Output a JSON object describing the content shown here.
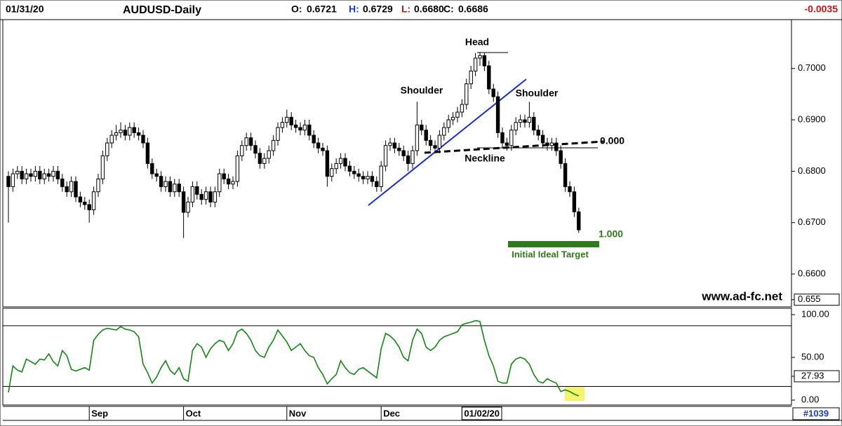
{
  "chart_data": {
    "type": "candlestick",
    "date": "01/31/20",
    "title": "AUDUSD-Daily",
    "quote": {
      "o_label": "O:",
      "o": "0.6721",
      "h_label": "H:",
      "h": "0.6729",
      "l_label": "L:",
      "l": "0.6680",
      "c_label": "C:",
      "c": "0.6686"
    },
    "change": "-0.0035",
    "open": [
      0.679,
      0.677,
      0.6795,
      0.68,
      0.6785,
      0.6795,
      0.679,
      0.68,
      0.6785,
      0.6795,
      0.679,
      0.68,
      0.6785,
      0.677,
      0.676,
      0.678,
      0.675,
      0.674,
      0.6735,
      0.6725,
      0.676,
      0.6785,
      0.683,
      0.6855,
      0.687,
      0.6875,
      0.688,
      0.687,
      0.6885,
      0.6875,
      0.687,
      0.6855,
      0.6815,
      0.6795,
      0.679,
      0.677,
      0.678,
      0.676,
      0.6775,
      0.676,
      0.672,
      0.674,
      0.677,
      0.6755,
      0.6745,
      0.676,
      0.674,
      0.676,
      0.6795,
      0.6785,
      0.6775,
      0.678,
      0.683,
      0.685,
      0.6865,
      0.685,
      0.6835,
      0.6815,
      0.6825,
      0.684,
      0.686,
      0.6885,
      0.6895,
      0.6905,
      0.689,
      0.6885,
      0.688,
      0.689,
      0.687,
      0.6855,
      0.6845,
      0.684,
      0.679,
      0.6805,
      0.6815,
      0.6825,
      0.681,
      0.68,
      0.6795,
      0.679,
      0.6785,
      0.679,
      0.678,
      0.677,
      0.681,
      0.685,
      0.6855,
      0.6845,
      0.684,
      0.683,
      0.6815,
      0.684,
      0.689,
      0.688,
      0.686,
      0.685,
      0.6845,
      0.687,
      0.6885,
      0.69,
      0.6905,
      0.6915,
      0.693,
      0.697,
      0.6995,
      0.702,
      0.7025,
      0.7005,
      0.696,
      0.6945,
      0.6875,
      0.6855,
      0.685,
      0.688,
      0.6895,
      0.69,
      0.6895,
      0.6905,
      0.688,
      0.687,
      0.6855,
      0.685,
      0.6855,
      0.684,
      0.6815,
      0.677,
      0.676,
      0.6721
    ],
    "high": [
      0.68,
      0.6805,
      0.681,
      0.681,
      0.6805,
      0.6805,
      0.681,
      0.681,
      0.6805,
      0.6805,
      0.681,
      0.681,
      0.6795,
      0.678,
      0.679,
      0.679,
      0.676,
      0.675,
      0.6745,
      0.677,
      0.6795,
      0.684,
      0.6865,
      0.688,
      0.689,
      0.6895,
      0.689,
      0.6895,
      0.6895,
      0.6885,
      0.688,
      0.6865,
      0.6825,
      0.6805,
      0.68,
      0.679,
      0.679,
      0.6785,
      0.6785,
      0.677,
      0.675,
      0.678,
      0.678,
      0.6765,
      0.677,
      0.677,
      0.677,
      0.6805,
      0.6805,
      0.6795,
      0.679,
      0.684,
      0.686,
      0.6875,
      0.6875,
      0.686,
      0.6845,
      0.6835,
      0.685,
      0.687,
      0.6895,
      0.6905,
      0.692,
      0.6915,
      0.69,
      0.6895,
      0.69,
      0.69,
      0.688,
      0.6865,
      0.6855,
      0.685,
      0.6815,
      0.6825,
      0.6835,
      0.6835,
      0.682,
      0.681,
      0.6805,
      0.68,
      0.68,
      0.68,
      0.679,
      0.682,
      0.686,
      0.6865,
      0.6865,
      0.6855,
      0.685,
      0.684,
      0.685,
      0.6935,
      0.69,
      0.689,
      0.687,
      0.686,
      0.688,
      0.6895,
      0.691,
      0.6915,
      0.6925,
      0.694,
      0.698,
      0.7005,
      0.703,
      0.7032,
      0.703,
      0.7015,
      0.697,
      0.6955,
      0.6885,
      0.6865,
      0.689,
      0.6905,
      0.691,
      0.691,
      0.6935,
      0.6915,
      0.689,
      0.688,
      0.6865,
      0.6865,
      0.6865,
      0.685,
      0.6825,
      0.678,
      0.677,
      0.6729
    ],
    "low": [
      0.67,
      0.676,
      0.6785,
      0.6775,
      0.6775,
      0.678,
      0.678,
      0.6775,
      0.6775,
      0.678,
      0.678,
      0.6775,
      0.676,
      0.675,
      0.675,
      0.674,
      0.673,
      0.6725,
      0.67,
      0.6715,
      0.675,
      0.6775,
      0.682,
      0.6845,
      0.686,
      0.6865,
      0.686,
      0.686,
      0.6865,
      0.686,
      0.6845,
      0.6805,
      0.6785,
      0.678,
      0.676,
      0.676,
      0.675,
      0.675,
      0.675,
      0.667,
      0.671,
      0.673,
      0.6745,
      0.6735,
      0.6735,
      0.673,
      0.673,
      0.675,
      0.6775,
      0.6765,
      0.6765,
      0.677,
      0.682,
      0.684,
      0.684,
      0.6825,
      0.6805,
      0.6805,
      0.6815,
      0.683,
      0.685,
      0.6875,
      0.6885,
      0.688,
      0.6875,
      0.687,
      0.687,
      0.686,
      0.6845,
      0.6835,
      0.683,
      0.677,
      0.678,
      0.6795,
      0.6805,
      0.68,
      0.679,
      0.6785,
      0.678,
      0.6775,
      0.6775,
      0.677,
      0.676,
      0.676,
      0.68,
      0.684,
      0.6835,
      0.683,
      0.682,
      0.68,
      0.6805,
      0.683,
      0.687,
      0.685,
      0.684,
      0.6835,
      0.6835,
      0.686,
      0.6875,
      0.689,
      0.6895,
      0.6905,
      0.692,
      0.696,
      0.6985,
      0.7005,
      0.6995,
      0.695,
      0.6935,
      0.6865,
      0.6845,
      0.684,
      0.684,
      0.687,
      0.6885,
      0.6885,
      0.6885,
      0.687,
      0.686,
      0.6845,
      0.684,
      0.684,
      0.683,
      0.6805,
      0.676,
      0.675,
      0.6711,
      0.668
    ],
    "close": [
      0.677,
      0.6795,
      0.68,
      0.6785,
      0.6795,
      0.679,
      0.68,
      0.6785,
      0.6795,
      0.679,
      0.68,
      0.6785,
      0.677,
      0.676,
      0.678,
      0.675,
      0.674,
      0.6735,
      0.6725,
      0.676,
      0.6785,
      0.683,
      0.6855,
      0.687,
      0.6875,
      0.688,
      0.687,
      0.6885,
      0.6875,
      0.687,
      0.6855,
      0.6815,
      0.6795,
      0.679,
      0.677,
      0.678,
      0.676,
      0.6775,
      0.676,
      0.672,
      0.674,
      0.677,
      0.6755,
      0.6745,
      0.676,
      0.674,
      0.676,
      0.6795,
      0.6785,
      0.6775,
      0.678,
      0.683,
      0.685,
      0.6865,
      0.685,
      0.6835,
      0.6815,
      0.6825,
      0.684,
      0.686,
      0.6885,
      0.6895,
      0.6905,
      0.689,
      0.6885,
      0.688,
      0.689,
      0.687,
      0.6855,
      0.6845,
      0.684,
      0.679,
      0.6805,
      0.6815,
      0.6825,
      0.681,
      0.68,
      0.6795,
      0.679,
      0.6785,
      0.679,
      0.678,
      0.677,
      0.681,
      0.685,
      0.6855,
      0.6845,
      0.684,
      0.683,
      0.6815,
      0.684,
      0.689,
      0.688,
      0.686,
      0.685,
      0.6845,
      0.687,
      0.6885,
      0.69,
      0.6905,
      0.6915,
      0.693,
      0.697,
      0.6995,
      0.702,
      0.7025,
      0.7005,
      0.696,
      0.6945,
      0.6875,
      0.6855,
      0.685,
      0.688,
      0.6895,
      0.69,
      0.6895,
      0.6905,
      0.688,
      0.687,
      0.6855,
      0.685,
      0.6855,
      0.684,
      0.6815,
      0.677,
      0.676,
      0.6721,
      0.6686
    ],
    "ylim": [
      0.6536,
      0.7095
    ],
    "yticks": [
      {
        "value": 0.7,
        "label": "0.7000"
      },
      {
        "value": 0.69,
        "label": "0.6900"
      },
      {
        "value": 0.68,
        "label": "0.6800"
      },
      {
        "value": 0.67,
        "label": "0.6700"
      },
      {
        "value": 0.66,
        "label": "0.6600"
      },
      {
        "value": 0.655,
        "label": "0.655"
      }
    ],
    "xticks": [
      {
        "value": 18,
        "label": "Sep"
      },
      {
        "value": 39,
        "label": "Oct"
      },
      {
        "value": 62,
        "label": "Nov"
      },
      {
        "value": 83,
        "label": "Dec"
      },
      {
        "value": 101,
        "label": "01/02/20"
      }
    ],
    "annotations": {
      "head": "Head",
      "left_shoulder": "Shoulder",
      "right_shoulder": "Shoulder",
      "neckline": "Neckline",
      "fib_0": "0.000",
      "fib_1": "1.000",
      "target": "Initial Ideal Target"
    },
    "website": "www.ad-fc.net",
    "chart_id": "#1039",
    "oscillator": {
      "type": "line",
      "color": "#118811",
      "values": [
        9,
        40,
        35,
        33,
        48,
        45,
        42,
        48,
        47,
        54,
        45,
        40,
        58,
        52,
        36,
        34,
        36,
        38,
        35,
        70,
        77,
        82,
        84,
        83,
        82,
        86,
        83,
        82,
        80,
        74,
        42,
        32,
        20,
        27,
        38,
        46,
        35,
        30,
        38,
        25,
        22,
        58,
        66,
        62,
        50,
        60,
        66,
        70,
        68,
        58,
        66,
        80,
        83,
        78,
        70,
        58,
        52,
        50,
        62,
        70,
        82,
        75,
        68,
        58,
        62,
        66,
        58,
        52,
        50,
        38,
        30,
        19,
        25,
        30,
        46,
        38,
        32,
        30,
        36,
        38,
        34,
        30,
        26,
        60,
        78,
        75,
        70,
        62,
        50,
        46,
        70,
        83,
        78,
        62,
        58,
        62,
        70,
        74,
        76,
        78,
        80,
        88,
        90,
        91,
        93,
        92,
        70,
        52,
        40,
        22,
        20,
        20,
        42,
        48,
        50,
        48,
        42,
        30,
        22,
        20,
        25,
        22,
        20,
        10,
        12,
        10,
        7,
        5
      ],
      "ylim": [
        -5.7,
        107.4
      ],
      "yticks": [
        {
          "value": 100,
          "label": "100.00"
        },
        {
          "value": 50,
          "label": "50.00"
        },
        {
          "value": 27.93,
          "label": "27.93"
        },
        {
          "value": 0,
          "label": "0.00"
        }
      ],
      "levels": [
        87,
        16
      ]
    }
  }
}
